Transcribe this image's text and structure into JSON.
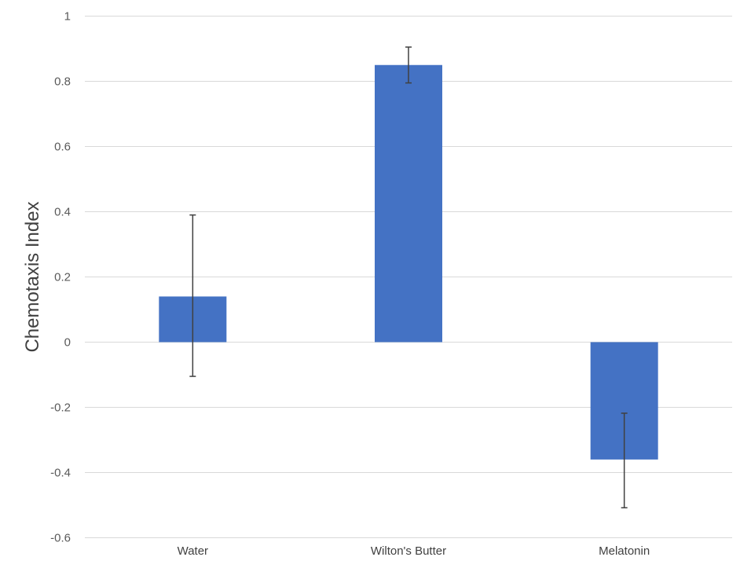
{
  "chart_data": {
    "type": "bar",
    "title": "",
    "xlabel": "",
    "ylabel": "Chemotaxis Index",
    "ylim": [
      -0.6,
      1
    ],
    "yticks": [
      -0.6,
      -0.4,
      -0.2,
      0,
      0.2,
      0.4,
      0.6,
      0.8,
      1
    ],
    "ytick_labels": [
      "-0.6",
      "-0.4",
      "-0.2",
      "0",
      "0.2",
      "0.4",
      "0.6",
      "0.8",
      "1"
    ],
    "categories": [
      "Water",
      "Wilton's Butter",
      "Melatonin"
    ],
    "values": [
      0.14,
      0.85,
      -0.36
    ],
    "error_low": [
      -0.105,
      0.795,
      -0.508
    ],
    "error_high": [
      0.39,
      0.905,
      -0.218
    ],
    "grid": true,
    "legend": "none",
    "bar_color": "#4472c4",
    "error_bar_color": "#404040",
    "grid_color": "#d9d9d9"
  }
}
